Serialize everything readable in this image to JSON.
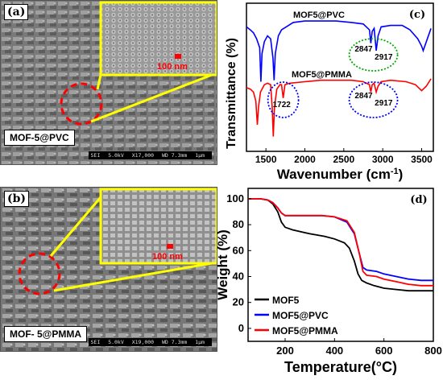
{
  "panels": {
    "a": {
      "letter": "(a)",
      "sample": "MOF-5@PVC",
      "inset_scale": "100 nm",
      "sem_info": [
        "SEI",
        "5.0kV",
        "X17,000",
        "WD 7.3mm",
        "1μm"
      ]
    },
    "b": {
      "letter": "(b)",
      "sample": "MOF- 5@PMMA",
      "inset_scale": "100 nm",
      "sem_info": [
        "SEI",
        "5.0kV",
        "X19,000",
        "WD 7.3mm",
        "1μm"
      ]
    }
  },
  "colors": {
    "black": "#000000",
    "blue": "#0000ff",
    "red": "#ff0000",
    "highlight_yellow": "#ffff00",
    "circle_red": "#ff0000",
    "green_dotted": "#00aa00"
  },
  "chart_data": [
    {
      "type": "line",
      "panel_label": "(c)",
      "title": "",
      "xlabel": "Wavenumber (cm",
      "xlabel_sup": "-1",
      "xlabel_end": ")",
      "ylabel": "Transmittance (%)",
      "xlim": [
        1250,
        3650
      ],
      "ylim": [
        0,
        100
      ],
      "x_ticks": [
        1500,
        2000,
        2500,
        3000,
        3500
      ],
      "series": [
        {
          "name": "MOF5@PVC",
          "color": "#0000ff",
          "points": [
            [
              1250,
              84
            ],
            [
              1300,
              82
            ],
            [
              1340,
              80
            ],
            [
              1380,
              76
            ],
            [
              1420,
              70
            ],
            [
              1435,
              47
            ],
            [
              1450,
              66
            ],
            [
              1480,
              74
            ],
            [
              1520,
              78
            ],
            [
              1560,
              76
            ],
            [
              1590,
              63
            ],
            [
              1605,
              48
            ],
            [
              1620,
              66
            ],
            [
              1660,
              78
            ],
            [
              1700,
              82
            ],
            [
              1760,
              84
            ],
            [
              1850,
              87
            ],
            [
              2000,
              88
            ],
            [
              2200,
              88
            ],
            [
              2400,
              88
            ],
            [
              2600,
              87
            ],
            [
              2750,
              86
            ],
            [
              2830,
              82
            ],
            [
              2847,
              73
            ],
            [
              2865,
              81
            ],
            [
              2890,
              83
            ],
            [
              2917,
              68
            ],
            [
              2940,
              78
            ],
            [
              2980,
              84
            ],
            [
              3100,
              85
            ],
            [
              3250,
              85
            ],
            [
              3350,
              82
            ],
            [
              3450,
              76
            ],
            [
              3500,
              71
            ],
            [
              3520,
              68
            ],
            [
              3560,
              74
            ],
            [
              3620,
              83
            ]
          ]
        },
        {
          "name": "MOF5@PMMA",
          "color": "#ff0000",
          "points": [
            [
              1250,
              43
            ],
            [
              1300,
              42
            ],
            [
              1340,
              40
            ],
            [
              1370,
              34
            ],
            [
              1390,
              18
            ],
            [
              1405,
              30
            ],
            [
              1430,
              40
            ],
            [
              1480,
              45
            ],
            [
              1520,
              46
            ],
            [
              1560,
              45
            ],
            [
              1580,
              30
            ],
            [
              1595,
              10
            ],
            [
              1610,
              30
            ],
            [
              1640,
              42
            ],
            [
              1680,
              45
            ],
            [
              1700,
              45
            ],
            [
              1722,
              36
            ],
            [
              1745,
              45
            ],
            [
              1800,
              46
            ],
            [
              2000,
              47
            ],
            [
              2200,
              48
            ],
            [
              2400,
              48
            ],
            [
              2600,
              48
            ],
            [
              2750,
              47
            ],
            [
              2830,
              45
            ],
            [
              2847,
              40
            ],
            [
              2865,
              45
            ],
            [
              2890,
              46
            ],
            [
              2917,
              40
            ],
            [
              2940,
              44
            ],
            [
              2980,
              47
            ],
            [
              3100,
              48
            ],
            [
              3300,
              47
            ],
            [
              3420,
              45
            ],
            [
              3500,
              41
            ],
            [
              3560,
              44
            ],
            [
              3620,
              49
            ]
          ]
        }
      ],
      "annotations": [
        {
          "text": "2847",
          "series": "MOF5@PVC"
        },
        {
          "text": "2917",
          "series": "MOF5@PVC"
        },
        {
          "text": "1722",
          "series": "MOF5@PMMA"
        },
        {
          "text": "2847",
          "series": "MOF5@PMMA"
        },
        {
          "text": "2917",
          "series": "MOF5@PMMA"
        }
      ]
    },
    {
      "type": "line",
      "panel_label": "(d)",
      "title": "",
      "xlabel": "Temperature(°C)",
      "ylabel": "Weight (%)",
      "xlim": [
        50,
        800
      ],
      "ylim": [
        -10,
        108
      ],
      "x_ticks": [
        200,
        400,
        600,
        800
      ],
      "y_ticks": [
        0,
        20,
        40,
        60,
        80,
        100
      ],
      "legend": "bottom-left",
      "series": [
        {
          "name": "MOF5",
          "color": "#000000",
          "points": [
            [
              50,
              100
            ],
            [
              100,
              100
            ],
            [
              130,
              99
            ],
            [
              150,
              96
            ],
            [
              170,
              90
            ],
            [
              185,
              82
            ],
            [
              200,
              78
            ],
            [
              230,
              76
            ],
            [
              300,
              73
            ],
            [
              360,
              71
            ],
            [
              400,
              69
            ],
            [
              440,
              66
            ],
            [
              460,
              62
            ],
            [
              480,
              52
            ],
            [
              495,
              42
            ],
            [
              510,
              37
            ],
            [
              530,
              35
            ],
            [
              560,
              33
            ],
            [
              600,
              31
            ],
            [
              650,
              30
            ],
            [
              700,
              29
            ],
            [
              800,
              29
            ]
          ]
        },
        {
          "name": "MOF5@PVC",
          "color": "#0000ff",
          "points": [
            [
              50,
              100
            ],
            [
              100,
              100
            ],
            [
              130,
              99
            ],
            [
              150,
              97
            ],
            [
              170,
              93
            ],
            [
              185,
              89
            ],
            [
              200,
              87
            ],
            [
              240,
              87
            ],
            [
              300,
              87
            ],
            [
              350,
              87
            ],
            [
              400,
              86
            ],
            [
              450,
              82
            ],
            [
              480,
              73
            ],
            [
              500,
              58
            ],
            [
              515,
              47
            ],
            [
              530,
              45
            ],
            [
              570,
              44
            ],
            [
              600,
              42
            ],
            [
              650,
              40
            ],
            [
              700,
              38
            ],
            [
              750,
              37
            ],
            [
              800,
              37
            ]
          ]
        },
        {
          "name": "MOF5@PMMA",
          "color": "#ff0000",
          "points": [
            [
              50,
              100
            ],
            [
              100,
              100
            ],
            [
              130,
              99
            ],
            [
              150,
              97
            ],
            [
              170,
              93
            ],
            [
              185,
              89
            ],
            [
              200,
              87
            ],
            [
              240,
              87
            ],
            [
              300,
              87
            ],
            [
              350,
              87
            ],
            [
              400,
              86
            ],
            [
              450,
              83
            ],
            [
              480,
              74
            ],
            [
              500,
              58
            ],
            [
              515,
              44
            ],
            [
              530,
              41
            ],
            [
              570,
              40
            ],
            [
              600,
              38
            ],
            [
              650,
              36
            ],
            [
              700,
              34
            ],
            [
              750,
              33
            ],
            [
              800,
              33
            ]
          ]
        }
      ]
    }
  ]
}
